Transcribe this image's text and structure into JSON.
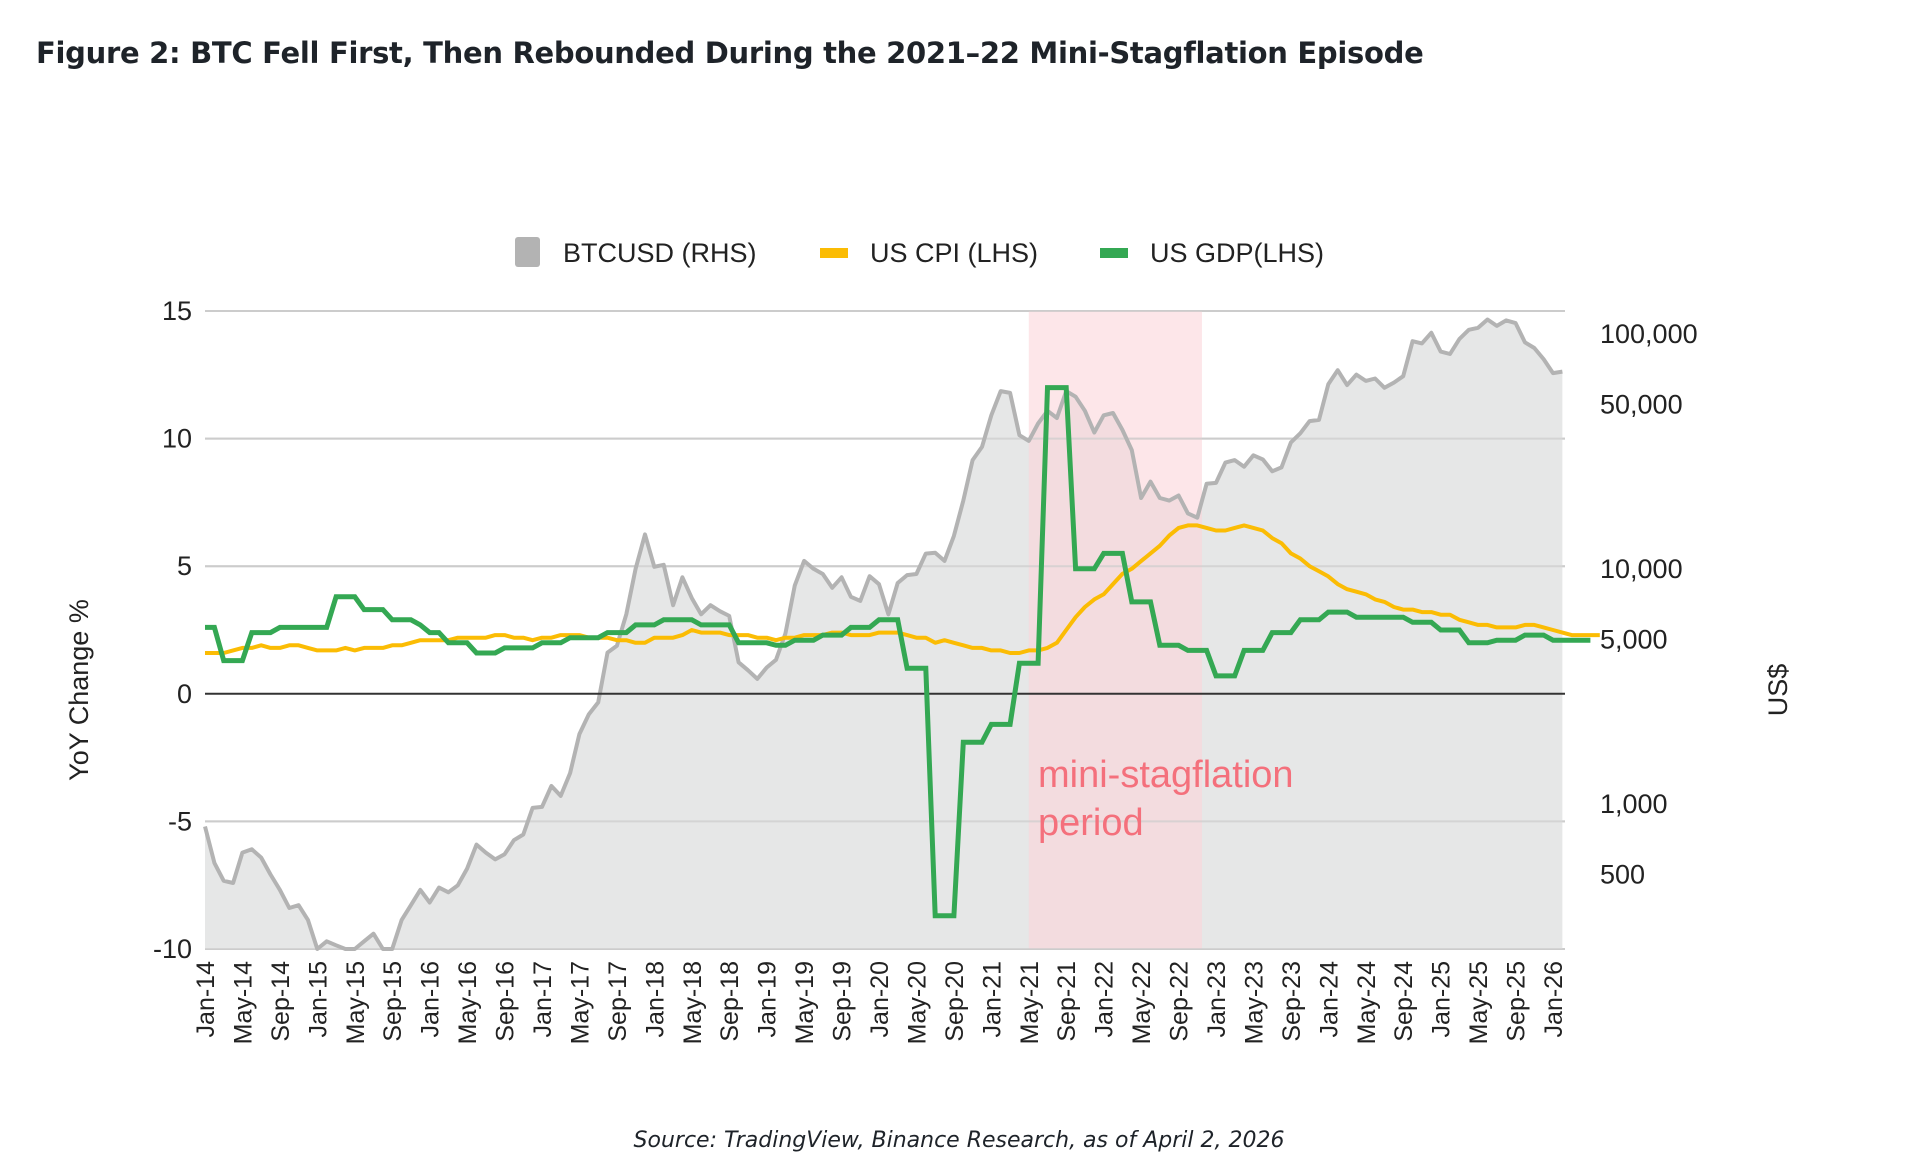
{
  "figure": {
    "title": "Figure 2: BTC Fell First, Then Rebounded During the 2021–22 Mini-Stagflation Episode",
    "source": "Source: TradingView, Binance Research, as of April 2, 2026"
  },
  "colors": {
    "btc_line": "#b3b3b3",
    "btc_fill": "#e6e7e7",
    "cpi": "#fbbc04",
    "gdp": "#34a853",
    "highlight": "#fcd6da",
    "annotation": "#f4707c",
    "grid": "#cccccc",
    "zero": "#333333"
  },
  "chart_data": {
    "type": "line",
    "title": "Figure 2: BTC Fell First, Then Rebounded During the 2021–22 Mini-Stagflation Episode",
    "xlabel": "",
    "ylabel": "YoY Change %",
    "y2label": "US$",
    "ylim": [
      -10,
      15
    ],
    "y2scale": "log",
    "y2lim": [
      241,
      125000
    ],
    "yticks": [
      "15",
      "10",
      "5",
      "0",
      "-5",
      "-10"
    ],
    "yticks_values": [
      15,
      10,
      5,
      0,
      -5,
      -10
    ],
    "y2ticks": [
      "100,000",
      "50,000",
      "10,000",
      "5,000",
      "1,000",
      "500"
    ],
    "y2ticks_values": [
      100000,
      50000,
      10000,
      5000,
      1000,
      500
    ],
    "grid": true,
    "legend_position": "top-center",
    "start": "Jan-14",
    "xticks": [
      "Jan-14",
      "May-14",
      "Sep-14",
      "Jan-15",
      "May-15",
      "Sep-15",
      "Jan-16",
      "May-16",
      "Sep-16",
      "Jan-17",
      "May-17",
      "Sep-17",
      "Jan-18",
      "May-18",
      "Sep-18",
      "Jan-19",
      "May-19",
      "Sep-19",
      "Jan-20",
      "May-20",
      "Sep-20",
      "Jan-21",
      "May-21",
      "Sep-21",
      "Jan-22",
      "May-22",
      "Sep-22",
      "Jan-23",
      "May-23",
      "Sep-23",
      "Jan-24",
      "May-24",
      "Sep-24",
      "Jan-25",
      "May-25",
      "Sep-25",
      "Jan-26"
    ],
    "highlight": {
      "label_line1": "mini-stagflation",
      "label_line2": "period",
      "from_month_index": 88,
      "to_month_index": 106.5
    },
    "series": [
      {
        "name": "BTCUSD (RHS)",
        "kind": "area",
        "axis": "right",
        "values": [
          800,
          560,
          470,
          460,
          620,
          640,
          590,
          500,
          430,
          360,
          370,
          320,
          240,
          260,
          250,
          240,
          235,
          260,
          280,
          235,
          240,
          320,
          370,
          430,
          380,
          440,
          420,
          450,
          530,
          670,
          620,
          580,
          610,
          700,
          740,
          960,
          970,
          1190,
          1080,
          1350,
          1980,
          2400,
          2700,
          4400,
          4700,
          6400,
          10000,
          14000,
          10200,
          10400,
          7000,
          9200,
          7500,
          6400,
          7000,
          6600,
          6300,
          4000,
          3700,
          3400,
          3800,
          4100,
          5300,
          8500,
          10800,
          10000,
          9500,
          8300,
          9200,
          7600,
          7300,
          9300,
          8600,
          6400,
          8700,
          9400,
          9500,
          11600,
          11700,
          10800,
          13800,
          19500,
          29000,
          33000,
          45000,
          57000,
          56000,
          37000,
          35000,
          41500,
          47000,
          43800,
          57000,
          54000,
          47000,
          38000,
          45000,
          46000,
          39000,
          32000,
          20000,
          23500,
          20000,
          19500,
          20500,
          17200,
          16500,
          23000,
          23200,
          28300,
          29000,
          27200,
          30400,
          29200,
          26000,
          27000,
          34500,
          37700,
          42500,
          43000,
          61000,
          70000,
          60500,
          67000,
          63000,
          64500,
          58900,
          62000,
          66000,
          93000,
          91000,
          101000,
          84000,
          82000,
          95000,
          104000,
          106000,
          115000,
          108000,
          114000,
          111000,
          92000,
          87000,
          78000,
          68000,
          69000
        ],
        "label": "BTCUSD (RHS)"
      },
      {
        "name": "US CPI (LHS)",
        "kind": "line",
        "axis": "left",
        "values": [
          1.6,
          1.6,
          1.6,
          1.7,
          1.8,
          1.8,
          1.9,
          1.8,
          1.8,
          1.9,
          1.9,
          1.8,
          1.7,
          1.7,
          1.7,
          1.8,
          1.7,
          1.8,
          1.8,
          1.8,
          1.9,
          1.9,
          2.0,
          2.1,
          2.1,
          2.1,
          2.1,
          2.2,
          2.2,
          2.2,
          2.2,
          2.3,
          2.3,
          2.2,
          2.2,
          2.1,
          2.2,
          2.2,
          2.3,
          2.3,
          2.3,
          2.2,
          2.2,
          2.2,
          2.1,
          2.1,
          2.0,
          2.0,
          2.2,
          2.2,
          2.2,
          2.3,
          2.5,
          2.4,
          2.4,
          2.4,
          2.3,
          2.3,
          2.3,
          2.2,
          2.2,
          2.1,
          2.2,
          2.2,
          2.3,
          2.3,
          2.3,
          2.4,
          2.4,
          2.3,
          2.3,
          2.3,
          2.4,
          2.4,
          2.4,
          2.3,
          2.2,
          2.2,
          2.0,
          2.1,
          2.0,
          1.9,
          1.8,
          1.8,
          1.7,
          1.7,
          1.6,
          1.6,
          1.7,
          1.7,
          1.8,
          2.0,
          2.5,
          3.0,
          3.4,
          3.7,
          3.9,
          4.3,
          4.7,
          4.9,
          5.2,
          5.5,
          5.8,
          6.2,
          6.5,
          6.6,
          6.6,
          6.5,
          6.4,
          6.4,
          6.5,
          6.6,
          6.5,
          6.4,
          6.1,
          5.9,
          5.5,
          5.3,
          5.0,
          4.8,
          4.6,
          4.3,
          4.1,
          4.0,
          3.9,
          3.7,
          3.6,
          3.4,
          3.3,
          3.3,
          3.2,
          3.2,
          3.1,
          3.1,
          2.9,
          2.8,
          2.7,
          2.7,
          2.6,
          2.6,
          2.6,
          2.7,
          2.7,
          2.6,
          2.5,
          2.4,
          2.3,
          2.3,
          2.3,
          2.3
        ],
        "label": "US CPI (LHS)"
      },
      {
        "name": "US GDP(LHS)",
        "kind": "step",
        "axis": "left",
        "values": [
          2.6,
          2.6,
          1.3,
          1.3,
          1.3,
          2.4,
          2.4,
          2.4,
          2.6,
          2.6,
          2.6,
          2.6,
          2.6,
          2.6,
          3.8,
          3.8,
          3.8,
          3.3,
          3.3,
          3.3,
          2.9,
          2.9,
          2.9,
          2.7,
          2.4,
          2.4,
          2.0,
          2.0,
          2.0,
          1.6,
          1.6,
          1.6,
          1.8,
          1.8,
          1.8,
          1.8,
          2.0,
          2.0,
          2.0,
          2.2,
          2.2,
          2.2,
          2.2,
          2.4,
          2.4,
          2.4,
          2.7,
          2.7,
          2.7,
          2.9,
          2.9,
          2.9,
          2.9,
          2.7,
          2.7,
          2.7,
          2.7,
          2.0,
          2.0,
          2.0,
          2.0,
          1.9,
          1.9,
          2.1,
          2.1,
          2.1,
          2.3,
          2.3,
          2.3,
          2.6,
          2.6,
          2.6,
          2.9,
          2.9,
          2.9,
          1.0,
          1.0,
          1.0,
          -8.7,
          -8.7,
          -8.7,
          -1.9,
          -1.9,
          -1.9,
          -1.2,
          -1.2,
          -1.2,
          1.2,
          1.2,
          1.2,
          12.0,
          12.0,
          12.0,
          4.9,
          4.9,
          4.9,
          5.5,
          5.5,
          5.5,
          3.6,
          3.6,
          3.6,
          1.9,
          1.9,
          1.9,
          1.7,
          1.7,
          1.7,
          0.7,
          0.7,
          0.7,
          1.7,
          1.7,
          1.7,
          2.4,
          2.4,
          2.4,
          2.9,
          2.9,
          2.9,
          3.2,
          3.2,
          3.2,
          3.0,
          3.0,
          3.0,
          3.0,
          3.0,
          3.0,
          2.8,
          2.8,
          2.8,
          2.5,
          2.5,
          2.5,
          2.0,
          2.0,
          2.0,
          2.1,
          2.1,
          2.1,
          2.3,
          2.3,
          2.3,
          2.1,
          2.1,
          2.1,
          2.1,
          2.1
        ],
        "label": "US GDP(LHS)"
      }
    ]
  }
}
